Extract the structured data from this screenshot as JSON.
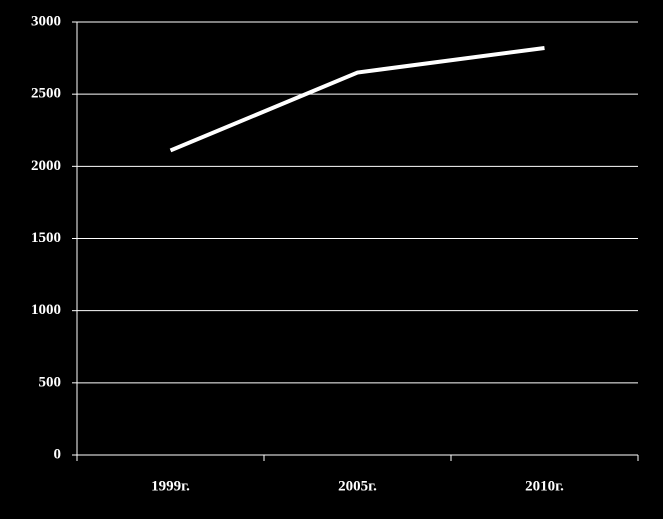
{
  "chart_data": {
    "type": "line",
    "categories": [
      "1999г.",
      "2005г.",
      "2010г."
    ],
    "series": [
      {
        "color": "#ffffff",
        "values": [
          2110,
          2650,
          2820
        ]
      }
    ],
    "ylim": [
      0,
      3000
    ],
    "yticks": [
      0,
      500,
      1000,
      1500,
      2000,
      2500,
      3000
    ],
    "grid": true
  }
}
